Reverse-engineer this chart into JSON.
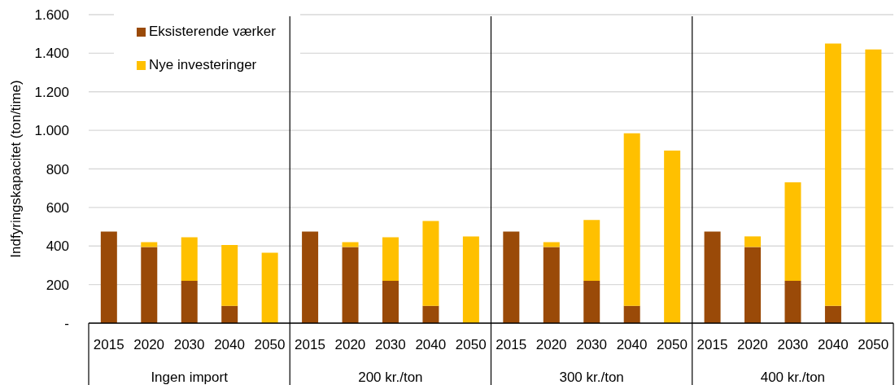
{
  "chart_data": {
    "type": "bar",
    "stacked": true,
    "ylabel": "Indfyringskapacitet (ton/time)",
    "categories": [
      "2015",
      "2020",
      "2030",
      "2040",
      "2050",
      "2015",
      "2020",
      "2030",
      "2040",
      "2050",
      "2015",
      "2020",
      "2030",
      "2040",
      "2050",
      "2015",
      "2020",
      "2030",
      "2040",
      "2050"
    ],
    "series": [
      {
        "name": "Eksisterende værker",
        "color": "#9a4a08",
        "values": [
          475,
          395,
          220,
          90,
          0,
          475,
          395,
          220,
          90,
          0,
          475,
          395,
          220,
          90,
          0,
          475,
          395,
          220,
          90,
          0
        ]
      },
      {
        "name": "Nye investeringer",
        "color": "#ffc000",
        "values": [
          0,
          25,
          225,
          315,
          365,
          0,
          25,
          225,
          440,
          450,
          0,
          25,
          315,
          895,
          895,
          0,
          55,
          510,
          1360,
          1420
        ]
      }
    ],
    "ylim": [
      0,
      1600
    ],
    "yticks": [
      {
        "value": 0,
        "label": "-"
      },
      200,
      400,
      600,
      800,
      {
        "value": 1000,
        "label": "1.000"
      },
      {
        "value": 1200,
        "label": "1.200"
      },
      {
        "value": 1400,
        "label": "1.400"
      },
      {
        "value": 1600,
        "label": "1.600"
      }
    ],
    "grid": "y",
    "legend": "top left",
    "annotations": [
      "Ingen import",
      "200 kr./ton",
      "300 kr./ton",
      "400 kr./ton"
    ]
  }
}
